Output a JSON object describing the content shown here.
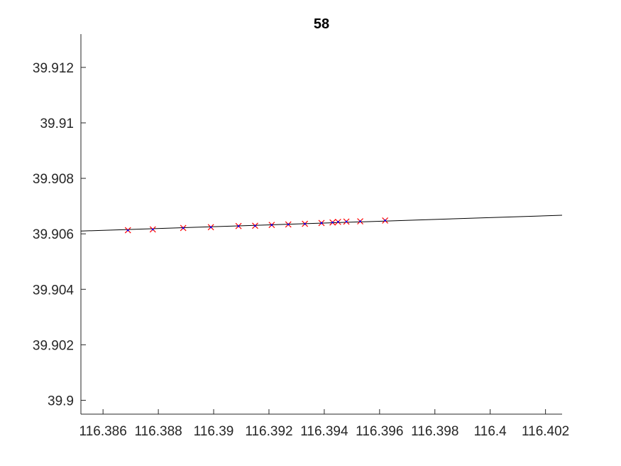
{
  "chart_data": {
    "type": "scatter",
    "title": "58",
    "xlabel": "",
    "ylabel": "",
    "xlim": [
      116.3852,
      116.4026
    ],
    "ylim": [
      39.8995,
      39.9132
    ],
    "grid": false,
    "x_ticks": [
      116.386,
      116.388,
      116.39,
      116.392,
      116.394,
      116.396,
      116.398,
      116.4,
      116.402
    ],
    "x_tick_labels": [
      "116.386",
      "116.388",
      "116.39",
      "116.392",
      "116.394",
      "116.396",
      "116.398",
      "116.4",
      "116.402"
    ],
    "y_ticks": [
      39.9,
      39.902,
      39.904,
      39.906,
      39.908,
      39.91,
      39.912
    ],
    "y_tick_labels": [
      "39.9",
      "39.902",
      "39.904",
      "39.906",
      "39.908",
      "39.91",
      "39.912"
    ],
    "series": [
      {
        "type": "scatter",
        "marker": "x",
        "color": "#ff0000",
        "x": [
          116.3869,
          116.3878,
          116.3889,
          116.3899,
          116.3909,
          116.3915,
          116.3921,
          116.3927,
          116.3933,
          116.3939,
          116.3943,
          116.3945,
          116.3948,
          116.3953,
          116.3962
        ],
        "y": [
          39.90613,
          39.90616,
          39.90621,
          39.90624,
          39.90628,
          39.90629,
          39.90632,
          39.90634,
          39.90636,
          39.90639,
          39.90641,
          39.90643,
          39.90644,
          39.90645,
          39.90648
        ]
      },
      {
        "type": "scatter",
        "marker": "dot",
        "color": "#0000ff",
        "x": [
          116.3869,
          116.3878,
          116.3889,
          116.3899,
          116.3909,
          116.3915,
          116.3921,
          116.3927,
          116.3933,
          116.3939,
          116.3943,
          116.3945,
          116.3948,
          116.3953,
          116.3962
        ],
        "y": [
          39.90613,
          39.90616,
          39.90621,
          39.90624,
          39.90628,
          39.90629,
          39.90632,
          39.90634,
          39.90636,
          39.90639,
          39.90641,
          39.90643,
          39.90644,
          39.90645,
          39.90648
        ]
      },
      {
        "type": "line",
        "color": "#000000",
        "x": [
          116.3852,
          116.4026
        ],
        "y": [
          39.9061,
          39.90667
        ]
      }
    ]
  }
}
